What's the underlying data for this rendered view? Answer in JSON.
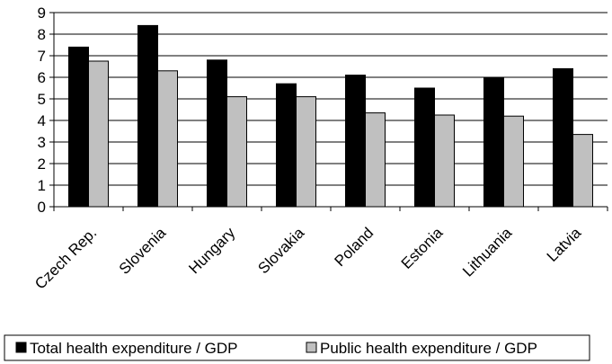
{
  "chart_data": {
    "type": "bar",
    "categories": [
      "Czech Rep.",
      "Slovenia",
      "Hungary",
      "Slovakia",
      "Poland",
      "Estonia",
      "Lithuania",
      "Latvia"
    ],
    "series": [
      {
        "name": "Total health expenditure / GDP",
        "color": "#000000",
        "values": [
          7.4,
          8.4,
          6.8,
          5.7,
          6.1,
          5.5,
          6.0,
          6.4
        ]
      },
      {
        "name": "Public health expenditure / GDP",
        "color": "#c0c0c0",
        "values": [
          6.75,
          6.3,
          5.1,
          5.1,
          4.35,
          4.25,
          4.2,
          3.35
        ]
      }
    ],
    "yticks": [
      "0",
      "1",
      "2",
      "3",
      "4",
      "5",
      "6",
      "7",
      "8",
      "9"
    ],
    "ylim": [
      0,
      9
    ],
    "grid": true,
    "legend_position": "bottom",
    "title": "",
    "xlabel": "",
    "ylabel": ""
  }
}
